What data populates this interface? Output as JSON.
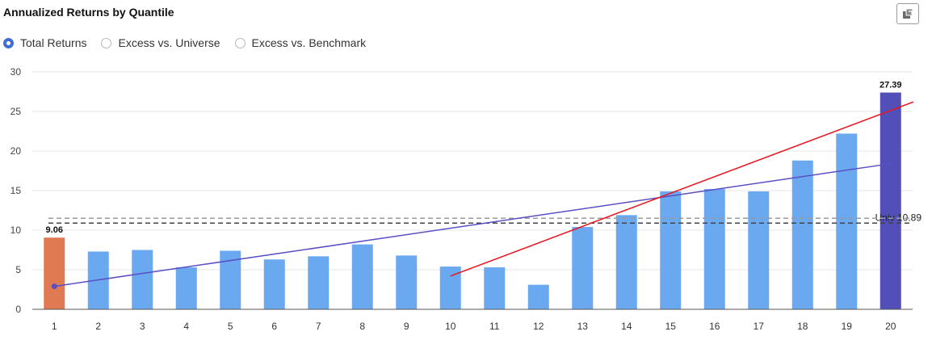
{
  "header": {
    "title": "Annualized Returns by Quantile",
    "export_icon": "export-icon"
  },
  "view_options": [
    {
      "label": "Total Returns",
      "selected": true
    },
    {
      "label": "Excess vs. Universe",
      "selected": false
    },
    {
      "label": "Excess vs. Benchmark",
      "selected": false
    }
  ],
  "chart_data": {
    "type": "bar",
    "title": "Annualized Returns by Quantile",
    "xlabel": "",
    "ylabel": "",
    "categories": [
      "1",
      "2",
      "3",
      "4",
      "5",
      "6",
      "7",
      "8",
      "9",
      "10",
      "11",
      "12",
      "13",
      "14",
      "15",
      "16",
      "17",
      "18",
      "19",
      "20"
    ],
    "values": [
      9.06,
      7.3,
      7.5,
      5.3,
      7.4,
      6.3,
      6.7,
      8.2,
      6.8,
      5.4,
      5.3,
      3.1,
      10.4,
      11.9,
      14.9,
      15.2,
      14.9,
      18.8,
      22.2,
      27.39
    ],
    "ylim": [
      0,
      30
    ],
    "yticks": [
      0,
      5,
      10,
      15,
      20,
      25,
      30
    ],
    "grid": true,
    "colors": {
      "default_bar": "#6aa8f0",
      "first_bar": "#e07a52",
      "last_bar": "#5250b8",
      "trend_line": "#5a4fc4",
      "red_line": "#e8141e",
      "ref_line": "#555555"
    },
    "data_labels": [
      {
        "category": "1",
        "text": "9.06"
      },
      {
        "category": "20",
        "text": "27.39"
      }
    ],
    "reference_lines": [
      {
        "label": "Univ 10.89",
        "value": 10.89
      },
      {
        "label": "",
        "value": 11.5
      }
    ],
    "trend_lines": [
      {
        "from": {
          "x": "1",
          "y": 2.9
        },
        "to": {
          "x": "20",
          "y": 18.4
        }
      },
      {
        "from": {
          "x": "10",
          "y": 4.2
        },
        "to": {
          "x": "20",
          "y": 26.2
        }
      }
    ]
  }
}
